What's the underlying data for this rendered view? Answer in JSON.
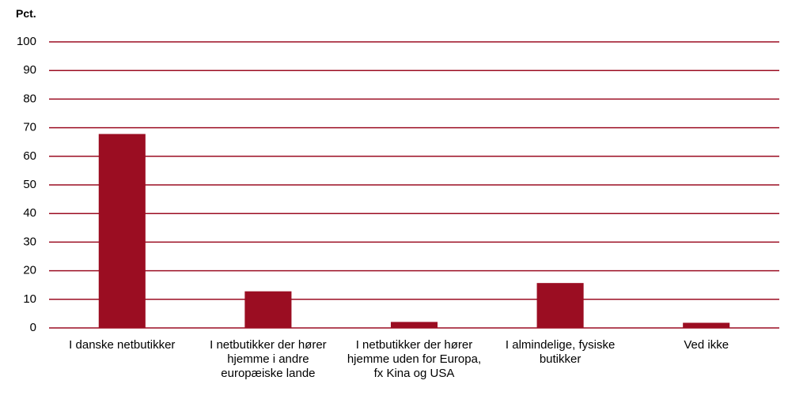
{
  "chart_data": {
    "type": "bar",
    "y_label": "Pct.",
    "categories": [
      "I danske netbutikker",
      "I netbutikker der hører hjemme i andre europæiske lande",
      "I netbutikker der hører hjemme uden for Europa, fx Kina og USA",
      "I almindelige, fysiske butikker",
      "Ved ikke"
    ],
    "values": [
      67.8,
      12.8,
      2.1,
      15.7,
      1.8
    ],
    "color": "#9b0d22",
    "grid_color": "#9b0d22",
    "ylim": [
      0,
      100
    ],
    "yticks": [
      0,
      10,
      20,
      30,
      40,
      50,
      60,
      70,
      80,
      90,
      100
    ],
    "grid": true
  }
}
